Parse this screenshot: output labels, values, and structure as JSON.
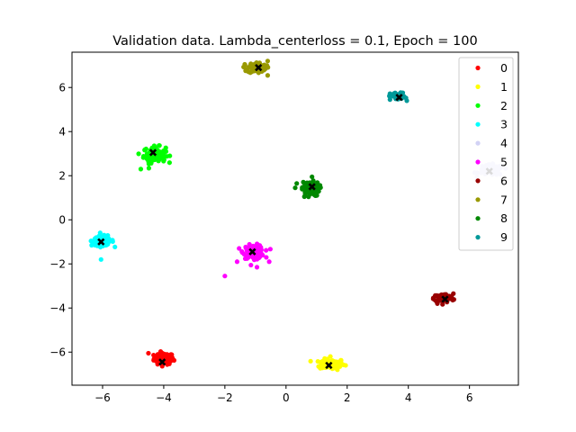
{
  "chart_data": {
    "type": "scatter",
    "title": "Validation data. Lambda_centerloss = 0.1, Epoch = 100",
    "xlabel": "",
    "ylabel": "",
    "xlim": [
      -7.0,
      7.6
    ],
    "ylim": [
      -7.5,
      7.6
    ],
    "xticks": [
      -6,
      -4,
      -2,
      0,
      2,
      4,
      6
    ],
    "yticks": [
      -6,
      -4,
      -2,
      0,
      2,
      4,
      6
    ],
    "grid": false,
    "legend_position": "top-right",
    "series": [
      {
        "name": "0",
        "color": "#ff0000",
        "center": [
          -4.0,
          -6.3
        ],
        "spread": [
          0.16,
          0.13
        ],
        "count": 90,
        "outliers": [
          [
            -4.5,
            -6.05
          ],
          [
            -4.2,
            -6.55
          ],
          [
            -3.8,
            -6.15
          ]
        ]
      },
      {
        "name": "1",
        "color": "#ffff00",
        "center": [
          1.5,
          -6.55
        ],
        "spread": [
          0.2,
          0.12
        ],
        "count": 90,
        "outliers": [
          [
            1.95,
            -6.6
          ],
          [
            1.15,
            -6.45
          ],
          [
            1.45,
            -6.2
          ]
        ]
      },
      {
        "name": "2",
        "color": "#00ff00",
        "center": [
          -4.3,
          2.95
        ],
        "spread": [
          0.18,
          0.18
        ],
        "count": 100,
        "outliers": [
          [
            -4.75,
            2.3
          ],
          [
            -3.95,
            3.15
          ],
          [
            -4.5,
            2.65
          ]
        ]
      },
      {
        "name": "3",
        "color": "#00ffff",
        "center": [
          -6.0,
          -0.95
        ],
        "spread": [
          0.18,
          0.11
        ],
        "count": 90,
        "outliers": [
          [
            -6.05,
            -1.8
          ],
          [
            -5.8,
            -0.85
          ],
          [
            -6.2,
            -1.15
          ]
        ]
      },
      {
        "name": "4",
        "color": "#d2d2f5",
        "center": [
          6.7,
          2.25
        ],
        "spread": [
          0.2,
          0.12
        ],
        "count": 90,
        "outliers": [
          [
            6.95,
            2.3
          ],
          [
            6.45,
            2.4
          ]
        ]
      },
      {
        "name": "5",
        "color": "#ff00ff",
        "center": [
          -1.05,
          -1.45
        ],
        "spread": [
          0.17,
          0.15
        ],
        "count": 110,
        "outliers": [
          [
            -2.0,
            -2.55
          ],
          [
            -1.6,
            -1.9
          ],
          [
            -0.55,
            -1.9
          ],
          [
            -0.95,
            -2.15
          ]
        ]
      },
      {
        "name": "6",
        "color": "#990000",
        "center": [
          5.15,
          -3.55
        ],
        "spread": [
          0.16,
          0.1
        ],
        "count": 90,
        "outliers": [
          [
            4.95,
            -3.8
          ],
          [
            5.4,
            -3.5
          ]
        ]
      },
      {
        "name": "7",
        "color": "#999900",
        "center": [
          -0.95,
          6.9
        ],
        "spread": [
          0.15,
          0.12
        ],
        "count": 80,
        "outliers": [
          [
            -1.35,
            7.05
          ],
          [
            -0.6,
            7.2
          ],
          [
            -0.6,
            6.55
          ]
        ]
      },
      {
        "name": "8",
        "color": "#008800",
        "center": [
          0.8,
          1.4
        ],
        "spread": [
          0.14,
          0.16
        ],
        "count": 90,
        "outliers": [
          [
            0.3,
            1.45
          ],
          [
            0.85,
            1.95
          ],
          [
            0.35,
            1.65
          ],
          [
            0.6,
            1.05
          ]
        ]
      },
      {
        "name": "9",
        "color": "#009999",
        "center": [
          3.65,
          5.6
        ],
        "spread": [
          0.12,
          0.08
        ],
        "count": 70,
        "outliers": [
          [
            3.4,
            5.45
          ],
          [
            3.95,
            5.4
          ]
        ]
      }
    ],
    "centers": [
      [
        -4.05,
        -6.45
      ],
      [
        1.4,
        -6.6
      ],
      [
        -4.35,
        3.05
      ],
      [
        -6.05,
        -1.0
      ],
      [
        6.65,
        2.2
      ],
      [
        -1.1,
        -1.45
      ],
      [
        5.2,
        -3.6
      ],
      [
        -0.9,
        6.9
      ],
      [
        0.85,
        1.5
      ],
      [
        3.7,
        5.55
      ]
    ],
    "center_marker_color": "#000000"
  }
}
